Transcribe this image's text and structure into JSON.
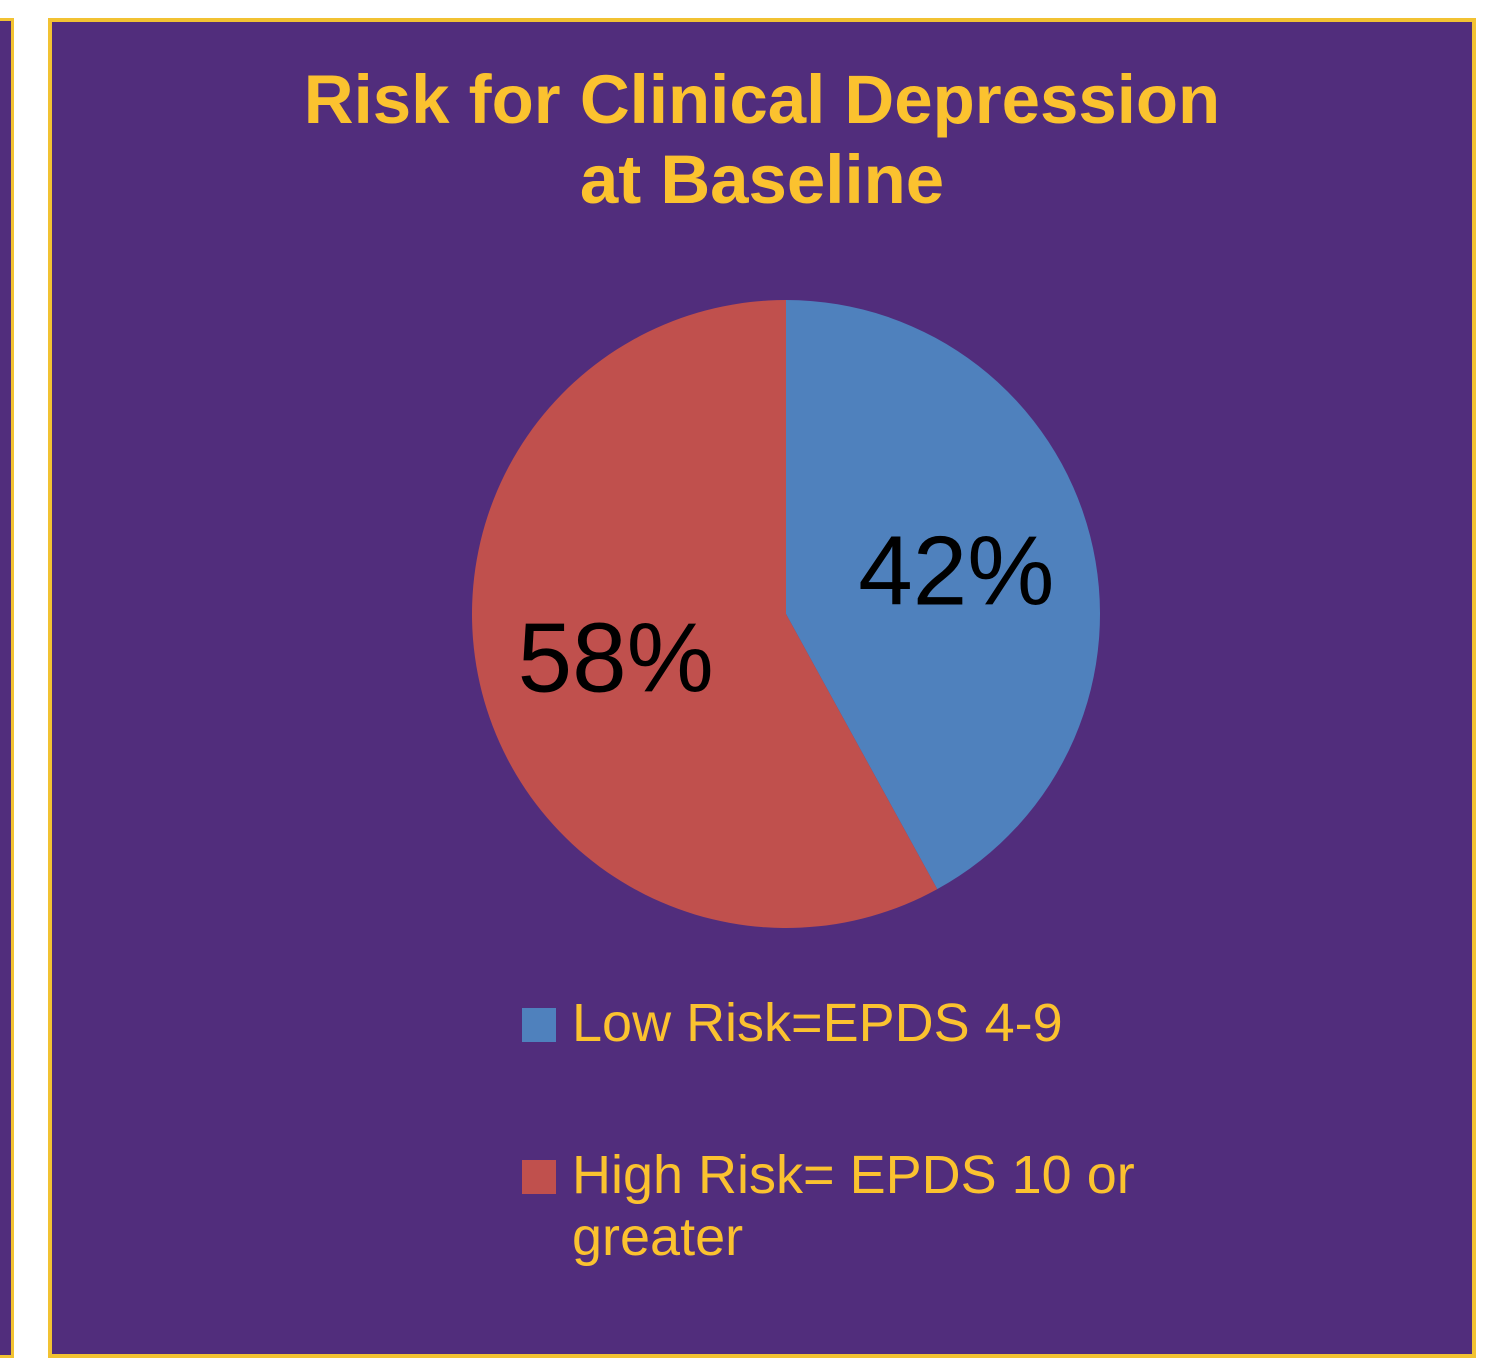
{
  "chart_data": {
    "type": "pie",
    "title_lines": [
      "Risk for Clinical Depression",
      "at Baseline"
    ],
    "slices": [
      {
        "name": "Low Risk=EPDS 4-9",
        "value": 42,
        "label": "42%",
        "color": "#4f81bd"
      },
      {
        "name": "High Risk= EPDS 10 or greater",
        "value": 58,
        "label": "58%",
        "color": "#c0504d"
      }
    ],
    "legend_placement": "bottom",
    "colors": {
      "background": "#512d7c",
      "border": "#f2c232",
      "title": "#fbc22f",
      "legend_text": "#fbc22f",
      "data_label": "#000000"
    }
  },
  "legend": {
    "items": [
      {
        "label": "Low Risk=EPDS 4-9",
        "color": "#4f81bd"
      },
      {
        "label": "High Risk= EPDS 10 or greater",
        "color": "#c0504d"
      }
    ]
  }
}
